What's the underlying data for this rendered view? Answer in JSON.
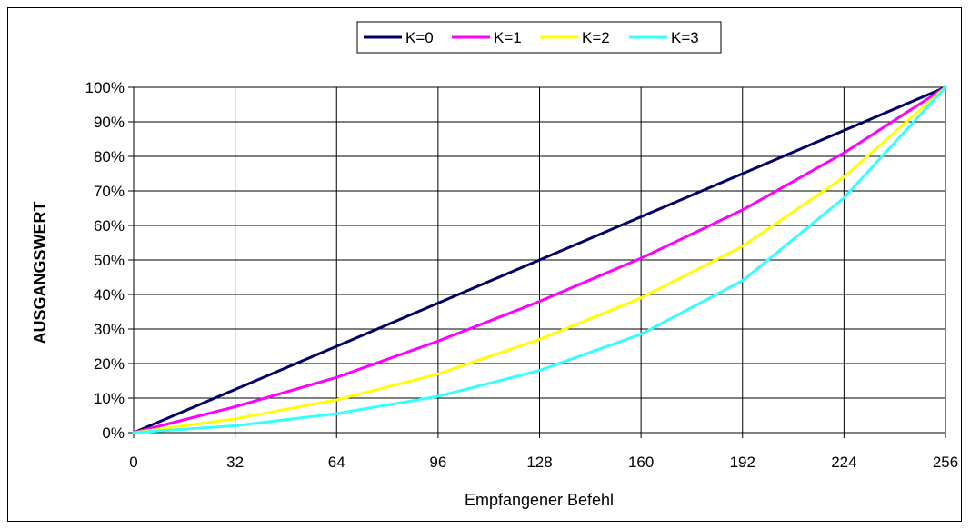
{
  "chart_data": {
    "type": "line",
    "title": "",
    "xlabel": "Empfangener Befehl",
    "ylabel": "AUSGANGSWERT",
    "xlim": [
      0,
      256
    ],
    "ylim": [
      0,
      100
    ],
    "x_ticks": [
      0,
      32,
      64,
      96,
      128,
      160,
      192,
      224,
      256
    ],
    "x_tick_labels": [
      "0",
      "32",
      "64",
      "96",
      "128",
      "160",
      "192",
      "224",
      "256"
    ],
    "y_ticks": [
      0,
      10,
      20,
      30,
      40,
      50,
      60,
      70,
      80,
      90,
      100
    ],
    "y_tick_labels": [
      "0%",
      "10%",
      "20%",
      "30%",
      "40%",
      "50%",
      "60%",
      "70%",
      "80%",
      "90%",
      "100%"
    ],
    "grid": true,
    "legend_position": "top-center",
    "x": [
      0,
      32,
      64,
      96,
      128,
      160,
      192,
      224,
      256
    ],
    "series": [
      {
        "name": "K=0",
        "color": "#000066",
        "values": [
          0,
          12.5,
          25,
          37.5,
          50,
          62.5,
          75,
          87.5,
          100
        ]
      },
      {
        "name": "K=1",
        "color": "#ff00ff",
        "values": [
          0,
          7.5,
          16,
          26.5,
          38,
          50.5,
          64.5,
          81,
          100
        ]
      },
      {
        "name": "K=2",
        "color": "#ffff00",
        "values": [
          0,
          4,
          9.5,
          17,
          27,
          39,
          54,
          74,
          100
        ]
      },
      {
        "name": "K=3",
        "color": "#33ffff",
        "values": [
          0,
          2,
          5.5,
          10.5,
          18,
          28.5,
          44,
          68,
          100
        ]
      }
    ]
  }
}
